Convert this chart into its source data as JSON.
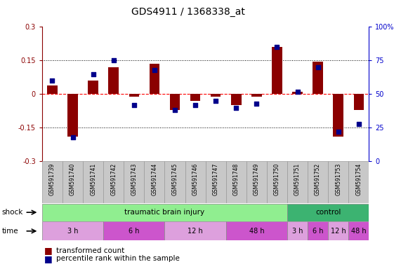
{
  "title": "GDS4911 / 1368338_at",
  "samples": [
    "GSM591739",
    "GSM591740",
    "GSM591741",
    "GSM591742",
    "GSM591743",
    "GSM591744",
    "GSM591745",
    "GSM591746",
    "GSM591747",
    "GSM591748",
    "GSM591749",
    "GSM591750",
    "GSM591751",
    "GSM591752",
    "GSM591753",
    "GSM591754"
  ],
  "bar_values": [
    0.04,
    -0.19,
    0.06,
    0.12,
    -0.01,
    0.135,
    -0.07,
    -0.03,
    -0.01,
    -0.05,
    -0.01,
    0.21,
    0.01,
    0.145,
    -0.19,
    -0.07
  ],
  "dot_values": [
    60,
    18,
    65,
    75,
    42,
    68,
    38,
    42,
    45,
    40,
    43,
    85,
    52,
    70,
    22,
    28
  ],
  "ylim": [
    -0.3,
    0.3
  ],
  "y2lim": [
    0,
    100
  ],
  "bar_color": "#8B0000",
  "dot_color": "#00008B",
  "background_color": "#ffffff",
  "dotted_lines": [
    0.15,
    -0.15
  ],
  "shock_groups": [
    {
      "label": "traumatic brain injury",
      "start": 0,
      "end": 11,
      "color": "#90EE90"
    },
    {
      "label": "control",
      "start": 12,
      "end": 15,
      "color": "#3CB371"
    }
  ],
  "time_groups": [
    {
      "label": "3 h",
      "start": 0,
      "end": 2,
      "color": "#DDA0DD"
    },
    {
      "label": "6 h",
      "start": 3,
      "end": 5,
      "color": "#CC55CC"
    },
    {
      "label": "12 h",
      "start": 6,
      "end": 8,
      "color": "#DDA0DD"
    },
    {
      "label": "48 h",
      "start": 9,
      "end": 11,
      "color": "#CC55CC"
    },
    {
      "label": "3 h",
      "start": 12,
      "end": 12,
      "color": "#DDA0DD"
    },
    {
      "label": "6 h",
      "start": 13,
      "end": 13,
      "color": "#CC55CC"
    },
    {
      "label": "12 h",
      "start": 14,
      "end": 14,
      "color": "#DDA0DD"
    },
    {
      "label": "48 h",
      "start": 15,
      "end": 15,
      "color": "#CC55CC"
    }
  ],
  "legend_bar_label": "transformed count",
  "legend_dot_label": "percentile rank within the sample",
  "bar_axis_color": "#8B0000",
  "dot_axis_color": "#0000CC",
  "sample_box_color": "#c8c8c8",
  "sample_box_edge": "#999999"
}
